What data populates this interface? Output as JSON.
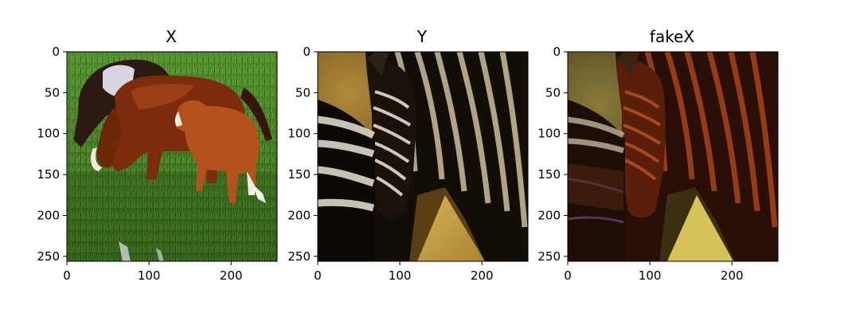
{
  "chart_data": [
    {
      "type": "image",
      "title": "X",
      "xlim": [
        0,
        256
      ],
      "ylim": [
        256,
        0
      ],
      "xticks": [
        0,
        100,
        200
      ],
      "yticks": [
        0,
        50,
        100,
        150,
        200,
        250
      ],
      "image_content": "horses-grazing"
    },
    {
      "type": "image",
      "title": "Y",
      "xlim": [
        0,
        256
      ],
      "ylim": [
        256,
        0
      ],
      "xticks": [
        0,
        100,
        200
      ],
      "yticks": [
        0,
        50,
        100,
        150,
        200,
        250
      ],
      "image_content": "zebras-closeup"
    },
    {
      "type": "image",
      "title": "fakeX",
      "xlim": [
        0,
        256
      ],
      "ylim": [
        256,
        0
      ],
      "xticks": [
        0,
        100,
        200
      ],
      "yticks": [
        0,
        50,
        100,
        150,
        200,
        250
      ],
      "image_content": "zebras-recolored-brown"
    }
  ],
  "colors": {
    "grass": "#3f7a22",
    "horse_brown": "#8a3410",
    "horse_light": "#b85a24",
    "zebra_black": "#120d08",
    "zebra_white": "#d8d2c4",
    "sand": "#c9a54e",
    "fake_brown": "#6b2410"
  }
}
